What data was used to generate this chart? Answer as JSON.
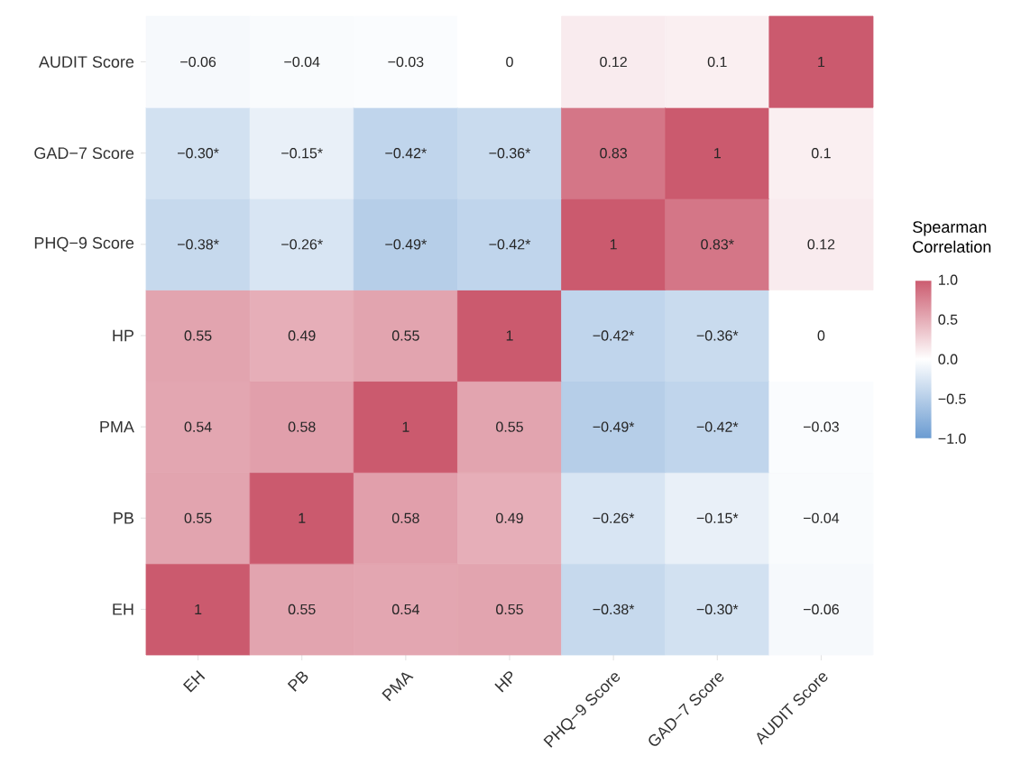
{
  "chart_data": {
    "type": "heatmap",
    "categories": [
      "EH",
      "PB",
      "PMA",
      "HP",
      "PHQ−9 Score",
      "GAD−7 Score",
      "AUDIT Score"
    ],
    "y_categories": [
      "AUDIT Score",
      "GAD−7 Score",
      "PHQ−9 Score",
      "HP",
      "PMA",
      "PB",
      "EH"
    ],
    "cells": [
      [
        -0.06,
        -0.04,
        -0.03,
        0,
        0.12,
        0.1,
        1
      ],
      [
        -0.3,
        -0.15,
        -0.42,
        -0.36,
        0.83,
        1,
        0.1
      ],
      [
        -0.38,
        -0.26,
        -0.49,
        -0.42,
        1,
        0.83,
        0.12
      ],
      [
        0.55,
        0.49,
        0.55,
        1,
        -0.42,
        -0.36,
        0
      ],
      [
        0.54,
        0.58,
        1,
        0.55,
        -0.49,
        -0.42,
        -0.03
      ],
      [
        0.55,
        1,
        0.58,
        0.49,
        -0.26,
        -0.15,
        -0.04
      ],
      [
        1,
        0.55,
        0.54,
        0.55,
        -0.38,
        -0.3,
        -0.06
      ]
    ],
    "cell_labels": [
      [
        "−0.06",
        "−0.04",
        "−0.03",
        "0",
        "0.12",
        "0.1",
        "1"
      ],
      [
        "−0.30*",
        "−0.15*",
        "−0.42*",
        "−0.36*",
        "0.83",
        "1",
        "0.1"
      ],
      [
        "−0.38*",
        "−0.26*",
        "−0.49*",
        "−0.42*",
        "1",
        "0.83*",
        "0.12"
      ],
      [
        "0.55",
        "0.49",
        "0.55",
        "1",
        "−0.42*",
        "−0.36*",
        "0"
      ],
      [
        "0.54",
        "0.58",
        "1",
        "0.55",
        "−0.49*",
        "−0.42*",
        "−0.03"
      ],
      [
        "0.55",
        "1",
        "0.58",
        "0.49",
        "−0.26*",
        "−0.15*",
        "−0.04"
      ],
      [
        "1",
        "0.55",
        "0.54",
        "0.55",
        "−0.38*",
        "−0.30*",
        "−0.06"
      ]
    ],
    "clabel": "Spearman Correlation",
    "clim": [
      -1,
      1
    ],
    "cticks": [
      {
        "value": 1,
        "label": "1.0"
      },
      {
        "value": 0.5,
        "label": "0.5"
      },
      {
        "value": 0,
        "label": "0.0"
      },
      {
        "value": -0.5,
        "label": "−0.5"
      },
      {
        "value": -1,
        "label": "−1.0"
      }
    ]
  }
}
